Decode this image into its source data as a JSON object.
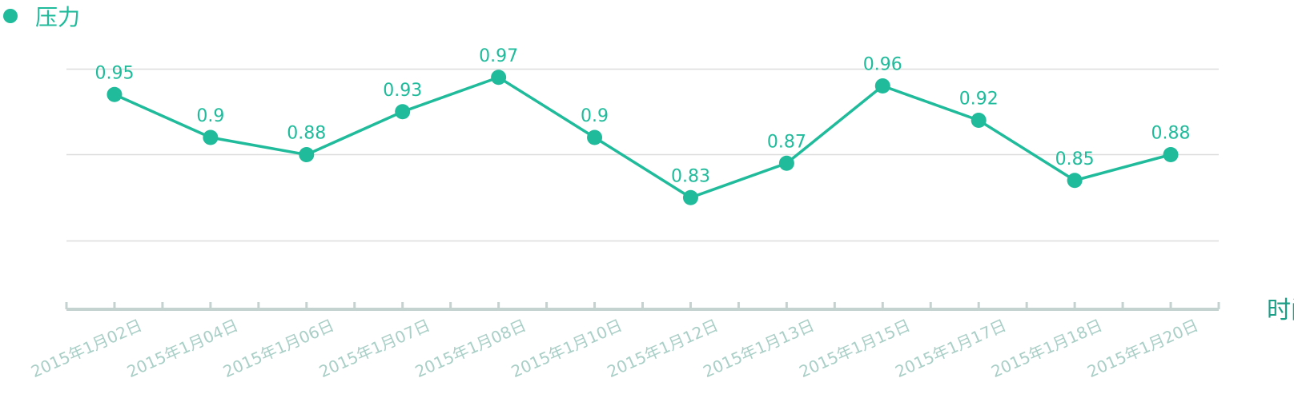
{
  "colors": {
    "series": "#1fbb9b",
    "grid": "#dcdcdc",
    "axis": "#c5d3d0",
    "tick_label": "#a9cfc6",
    "axis_title": "#1a9e86"
  },
  "chart_data": {
    "type": "line",
    "title": "",
    "categories": [
      "2015年1月02日",
      "2015年1月04日",
      "2015年1月06日",
      "2015年1月07日",
      "2015年1月08日",
      "2015年1月10日",
      "2015年1月12日",
      "2015年1月13日",
      "2015年1月15日",
      "2015年1月17日",
      "2015年1月18日",
      "2015年1月20日"
    ],
    "series": [
      {
        "name": "压力",
        "values": [
          0.95,
          0.9,
          0.88,
          0.93,
          0.97,
          0.9,
          0.83,
          0.87,
          0.96,
          0.92,
          0.85,
          0.88
        ]
      }
    ],
    "xlabel": "时间",
    "ylabel": "",
    "ylim": [
      0.7,
      0.98
    ],
    "grid": true,
    "legend": "top-left",
    "data_labels": true
  }
}
